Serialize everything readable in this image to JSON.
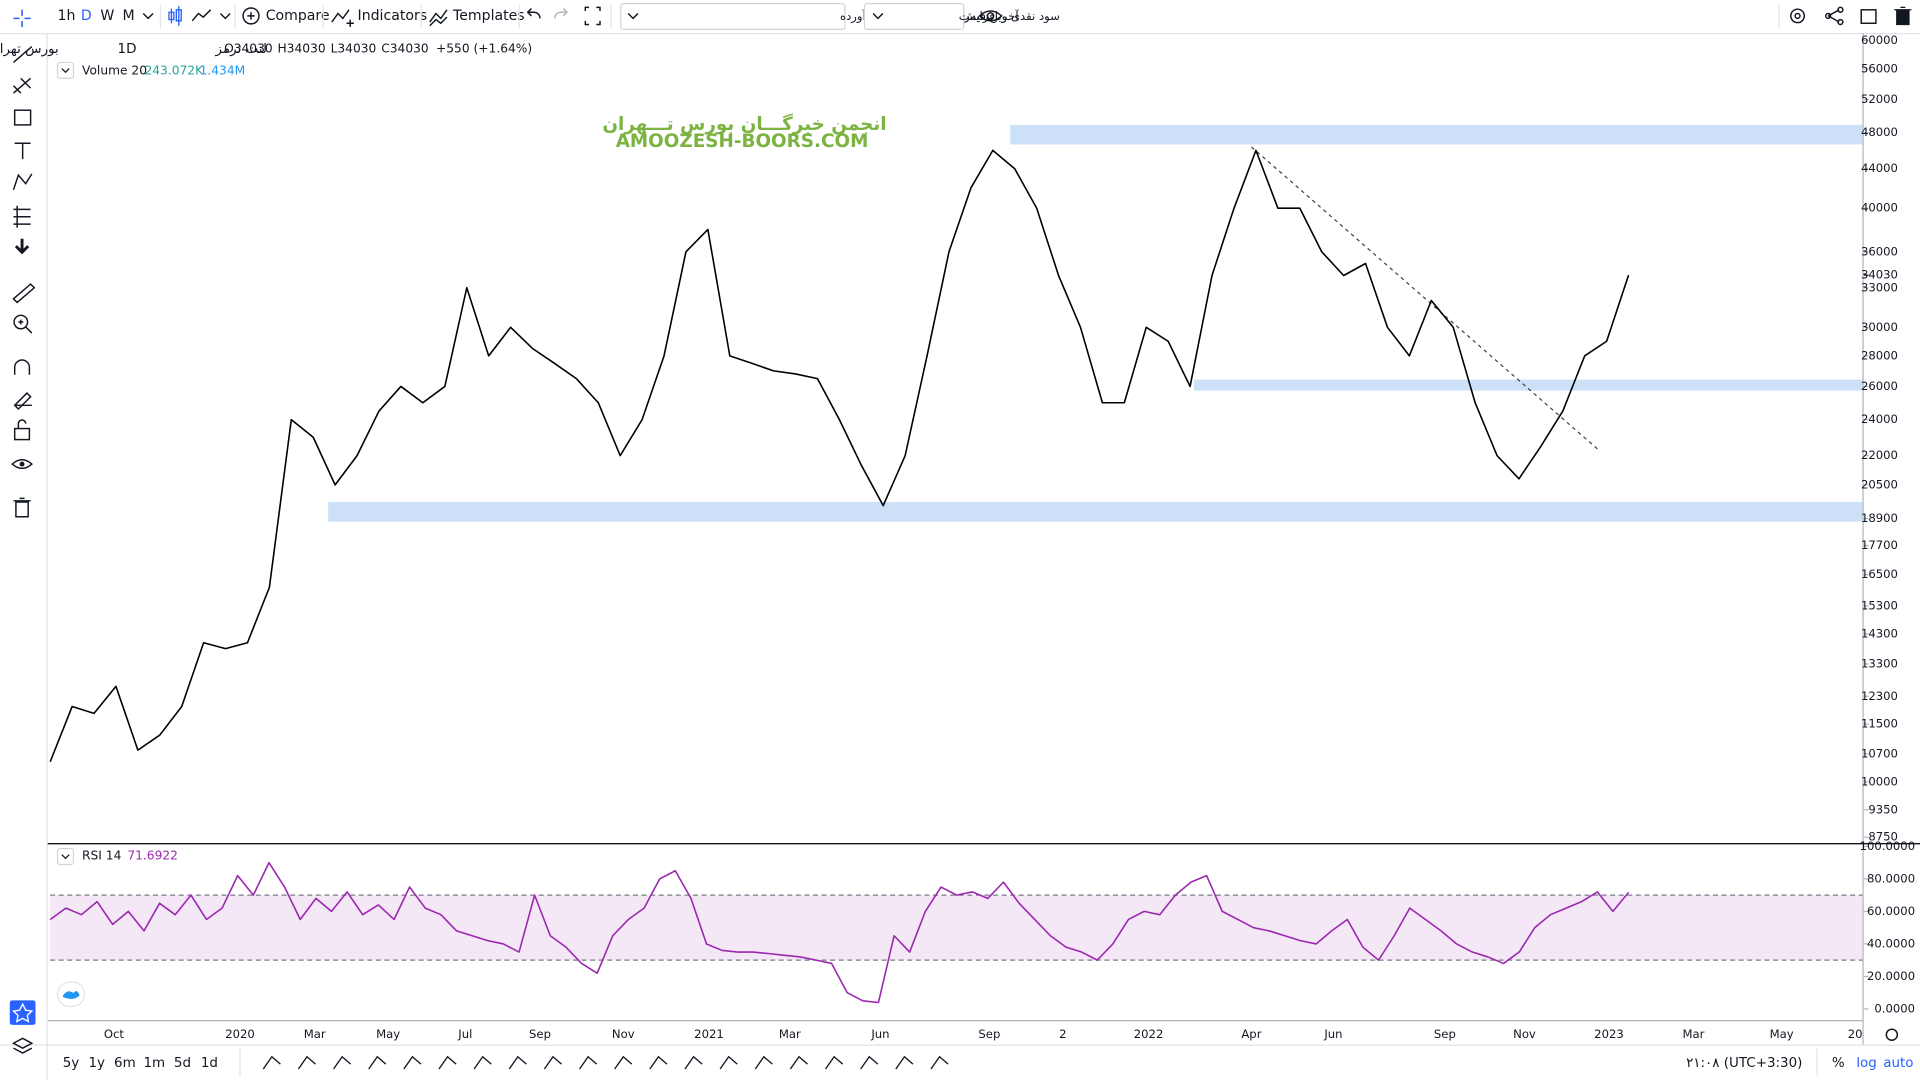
{
  "toolbar": {
    "intervals": [
      "1h",
      "D",
      "W",
      "M"
    ],
    "compare": "Compare",
    "indicators": "Indicators",
    "templates": "Templates",
    "dividend_mode": "سود نقدی و افزایش سرمایه با احتساب آورده",
    "price_type": "آخرین قیمت"
  },
  "legend": {
    "symbol": "لنت ترمز",
    "interval": "1D",
    "exchange": "بورس تهران",
    "ohlc": [
      {
        "label": "O",
        "value": "34030"
      },
      {
        "label": "H",
        "value": "34030"
      },
      {
        "label": "L",
        "value": "34030"
      },
      {
        "label": "C",
        "value": "34030"
      }
    ],
    "change": "+550 (+1.64%)"
  },
  "volume_legend": {
    "name": "Volume 20",
    "value1": "243.072K",
    "value2": "1.434M"
  },
  "watermark": {
    "persian": "انجمن خبرگـــان بورس تـــهران",
    "url": "AMOOZESH-BOORS.COM"
  },
  "chart_data": [
    {
      "type": "line",
      "log_scale": true,
      "color": "#000000",
      "ylim": [
        8640,
        61070
      ],
      "yticks": [
        60000,
        56000,
        52000,
        48000,
        44000,
        40000,
        36000,
        33000,
        30000,
        28000,
        26000,
        24000,
        22000,
        20500,
        18900,
        17700,
        16500,
        15300,
        14300,
        13300,
        12300,
        11500,
        10700,
        10000,
        9350,
        8750
      ],
      "last_price": 34030,
      "values": [
        10500,
        12000,
        11800,
        12600,
        10800,
        11200,
        12000,
        14000,
        13800,
        14000,
        16000,
        24000,
        23000,
        20500,
        22000,
        24500,
        26000,
        25000,
        26000,
        33000,
        28000,
        30000,
        28500,
        27500,
        26500,
        25000,
        22000,
        24000,
        28000,
        36000,
        38000,
        28000,
        27500,
        27000,
        26800,
        26500,
        24000,
        21500,
        19500,
        22000,
        28000,
        36000,
        42000,
        46000,
        44000,
        40000,
        34000,
        30000,
        25000,
        25000,
        30000,
        29000,
        26000,
        34000,
        40000,
        46000,
        40000,
        40000,
        36000,
        34000,
        35000,
        30000,
        28000,
        32000,
        30000,
        25000,
        22000,
        20800,
        22500,
        24500,
        28000,
        29000,
        34030
      ]
    },
    {
      "type": "line",
      "title": "RSI 14",
      "value_label": "71.6922",
      "color": "#9c27b0",
      "ylim": [
        -6.8,
        100.9
      ],
      "yticks": [
        {
          "value": 100,
          "label": "100.0000"
        },
        {
          "value": 80,
          "label": "80.0000"
        },
        {
          "value": 60,
          "label": "60.0000"
        },
        {
          "value": 40,
          "label": "40.0000"
        },
        {
          "value": 20,
          "label": "20.0000"
        },
        {
          "value": 0,
          "label": "0.0000"
        }
      ],
      "bands": [
        70,
        30
      ],
      "values": [
        55,
        62,
        58,
        66,
        52,
        60,
        48,
        65,
        58,
        70,
        55,
        62,
        82,
        70,
        90,
        75,
        55,
        68,
        60,
        72,
        58,
        64,
        55,
        75,
        62,
        58,
        48,
        45,
        42,
        40,
        35,
        70,
        45,
        38,
        28,
        22,
        45,
        55,
        62,
        80,
        85,
        68,
        40,
        36,
        35,
        35,
        34,
        33,
        32,
        30,
        28,
        10,
        5,
        4,
        45,
        35,
        60,
        75,
        70,
        72,
        68,
        78,
        65,
        55,
        45,
        38,
        35,
        30,
        40,
        55,
        60,
        58,
        70,
        78,
        82,
        60,
        55,
        50,
        48,
        45,
        42,
        40,
        48,
        55,
        38,
        30,
        45,
        62,
        55,
        48,
        40,
        35,
        32,
        28,
        35,
        50,
        58,
        62,
        66,
        72,
        60,
        71.6922
      ]
    }
  ],
  "time_axis": {
    "labels": [
      "Oct",
      "2020",
      "Mar",
      "May",
      "Jul",
      "Sep",
      "Nov",
      "2021",
      "Mar",
      "Jun",
      "Sep",
      "2",
      "2022",
      "Apr",
      "Jun",
      "Sep",
      "Nov",
      "2023",
      "Mar",
      "May",
      "20"
    ]
  },
  "bottom_bar": {
    "ranges": [
      "5y",
      "1y",
      "6m",
      "1m",
      "5d",
      "1d"
    ],
    "clock": "۲۱:۰۸ (UTC+3:30)",
    "percent": "%",
    "log": "log",
    "auto": "auto"
  }
}
